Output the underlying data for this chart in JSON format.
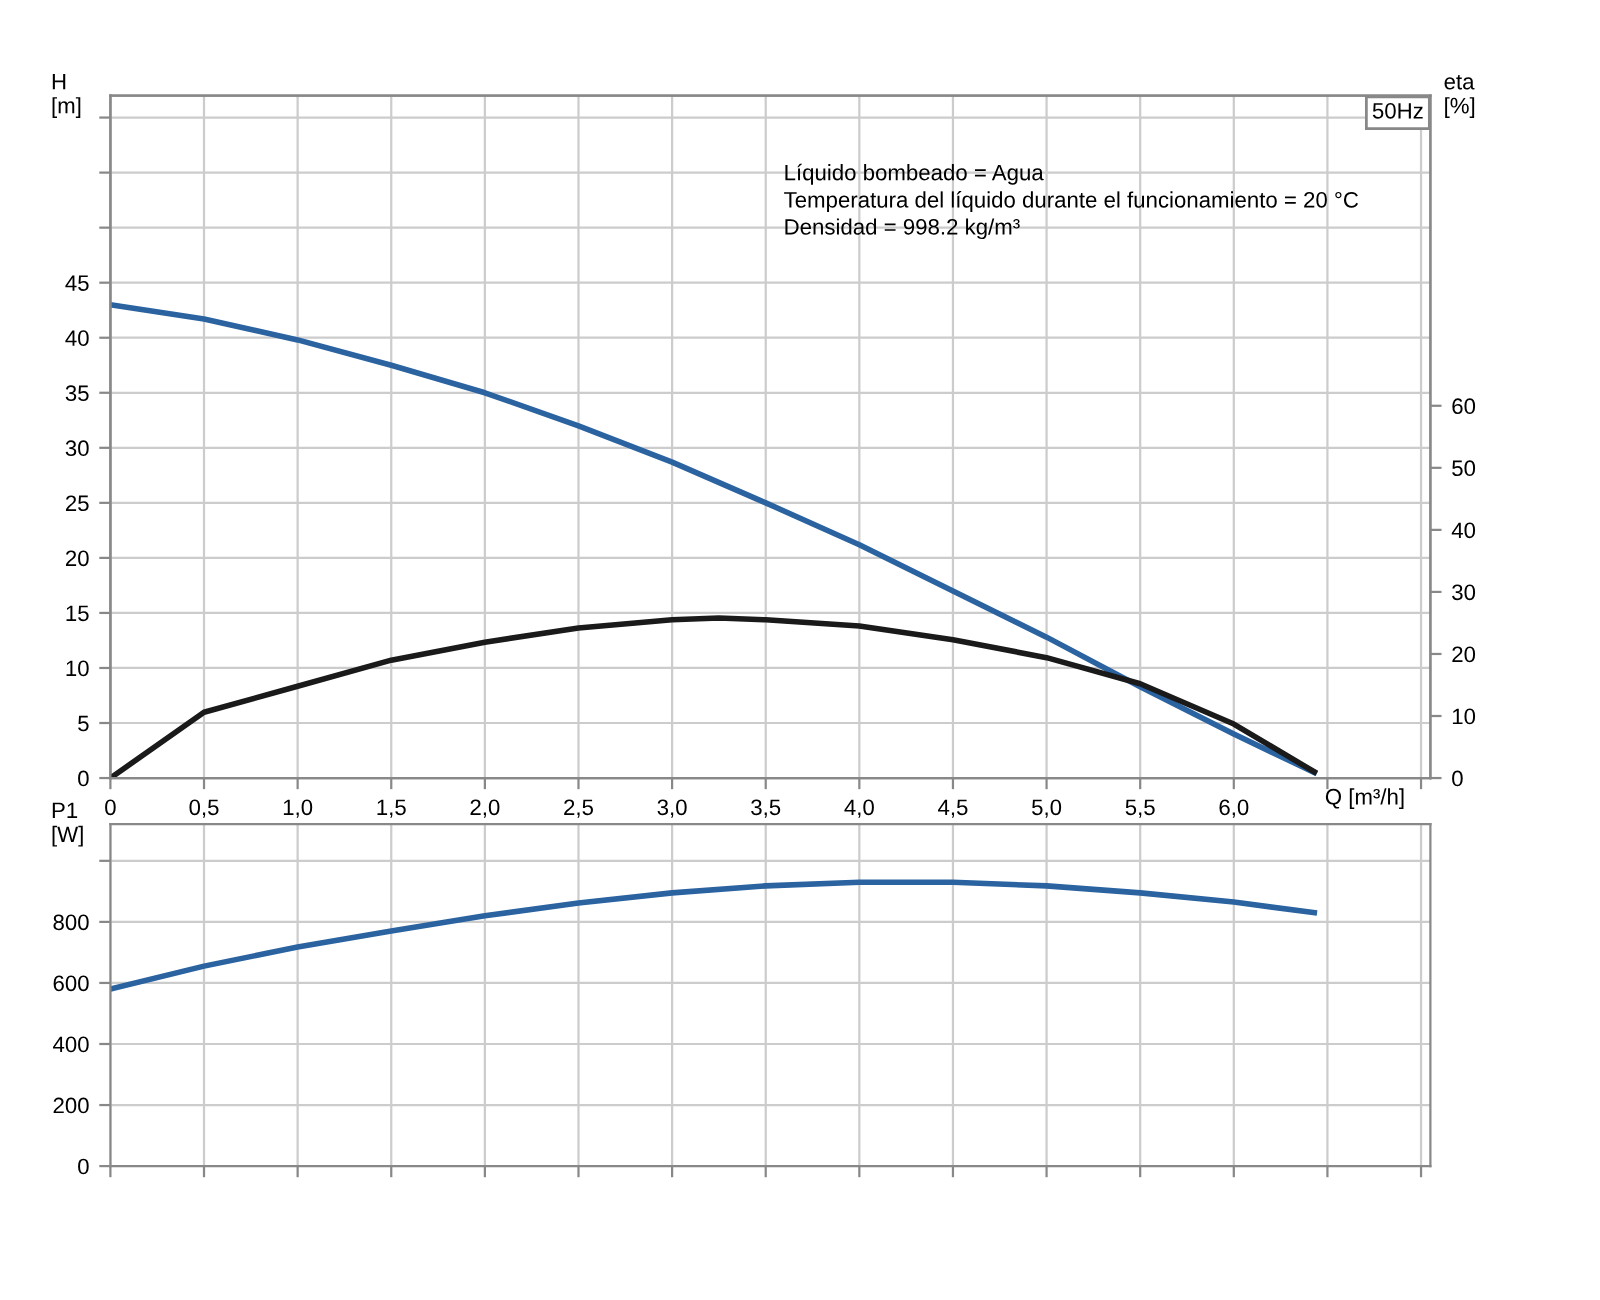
{
  "chart_data": [
    {
      "type": "line",
      "title": "50Hz",
      "ylabel": "H\n[m]",
      "y2label": "eta\n[%]",
      "xlabel": "Q [m³/h]",
      "annotations": [
        "Líquido bombeado = Agua",
        "Temperatura del líquido durante el funcionamiento = 20 °C",
        "Densidad = 998.2 kg/m³"
      ],
      "xlim": [
        0,
        7.05
      ],
      "xticks": [
        {
          "value": 0,
          "label": "0"
        },
        {
          "value": 0.5,
          "label": "0,5"
        },
        {
          "value": 1.0,
          "label": "1,0"
        },
        {
          "value": 1.5,
          "label": "1,5"
        },
        {
          "value": 2.0,
          "label": "2,0"
        },
        {
          "value": 2.5,
          "label": "2,5"
        },
        {
          "value": 3.0,
          "label": "3,0"
        },
        {
          "value": 3.5,
          "label": "3,5"
        },
        {
          "value": 4.0,
          "label": "4,0"
        },
        {
          "value": 4.5,
          "label": "4,5"
        },
        {
          "value": 5.0,
          "label": "5,0"
        },
        {
          "value": 5.5,
          "label": "5,5"
        },
        {
          "value": 6.0,
          "label": "6,0"
        },
        {
          "value": 6.5,
          "label": null
        },
        {
          "value": 7.0,
          "label": null
        }
      ],
      "ylim": [
        0,
        62
      ],
      "yticks": [
        0,
        5,
        10,
        15,
        20,
        25,
        30,
        35,
        40,
        45,
        {
          "value": 50,
          "label": null
        },
        {
          "value": 55,
          "label": null
        },
        {
          "value": 60,
          "label": null
        }
      ],
      "y2lim": [
        0,
        110
      ],
      "y2ticks": [
        0,
        10,
        20,
        30,
        40,
        50,
        60
      ],
      "grid": true,
      "line_style": "solid",
      "marker": "none",
      "series": [
        {
          "color": "#2a63a0",
          "x": [
            0,
            0.5,
            1.0,
            1.5,
            2.0,
            2.5,
            3.0,
            3.5,
            4.0,
            4.5,
            5.0,
            5.5,
            6.0,
            6.43
          ],
          "values": [
            43,
            41.7,
            39.8,
            37.5,
            35,
            32,
            28.7,
            25,
            21.2,
            17,
            12.8,
            8.3,
            4,
            0.5
          ]
        },
        {
          "color": "#1a1a1a",
          "axis": "y2",
          "x": [
            0,
            0.5,
            1.0,
            1.5,
            2.0,
            2.5,
            3.0,
            3.25,
            3.5,
            4.0,
            4.5,
            5.0,
            5.5,
            6.0,
            6.43
          ],
          "values": [
            0,
            10.6,
            14.8,
            19,
            21.9,
            24.2,
            25.5,
            25.8,
            25.5,
            24.5,
            22.3,
            19.4,
            15.2,
            8.7,
            1
          ]
        }
      ]
    },
    {
      "type": "line",
      "ylabel": "P1\n[W]",
      "tick_labels": "y",
      "grid": true,
      "line_style": "solid",
      "marker": "none",
      "xlim": [
        0,
        7.05
      ],
      "xticks": [
        {
          "value": 0,
          "label": null
        },
        {
          "value": 0.5,
          "label": null
        },
        {
          "value": 1.0,
          "label": null
        },
        {
          "value": 1.5,
          "label": null
        },
        {
          "value": 2.0,
          "label": null
        },
        {
          "value": 2.5,
          "label": null
        },
        {
          "value": 3.0,
          "label": null
        },
        {
          "value": 3.5,
          "label": null
        },
        {
          "value": 4.0,
          "label": null
        },
        {
          "value": 4.5,
          "label": null
        },
        {
          "value": 5.0,
          "label": null
        },
        {
          "value": 5.5,
          "label": null
        },
        {
          "value": 6.0,
          "label": null
        },
        {
          "value": 6.5,
          "label": null
        },
        {
          "value": 7.0,
          "label": null
        }
      ],
      "ylim": [
        0,
        1120
      ],
      "yticks": [
        0,
        200,
        400,
        600,
        800,
        {
          "value": 1000,
          "label": null
        }
      ],
      "series": [
        {
          "color": "#2a63a0",
          "x": [
            0,
            0.5,
            1.0,
            1.5,
            2.0,
            2.5,
            3.0,
            3.5,
            4.0,
            4.5,
            5.0,
            5.5,
            6.0,
            6.43
          ],
          "values": [
            580,
            655,
            718,
            770,
            820,
            862,
            895,
            918,
            930,
            930,
            918,
            895,
            865,
            830
          ]
        }
      ]
    }
  ]
}
